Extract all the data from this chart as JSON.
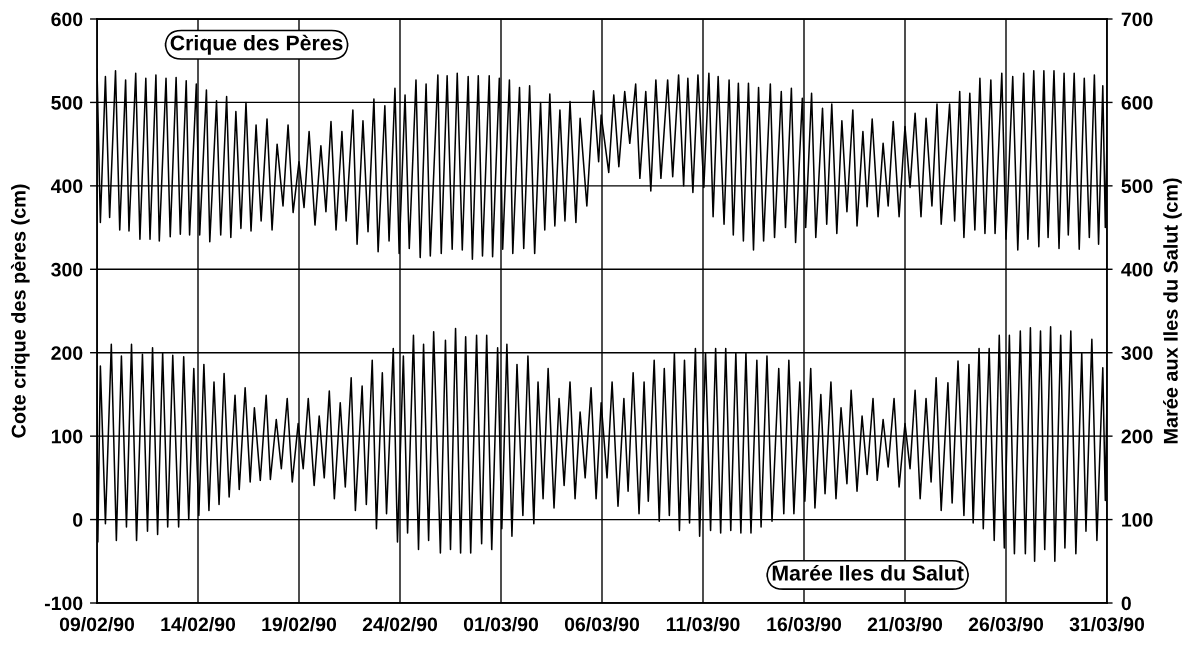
{
  "chart_data": {
    "type": "line",
    "ylabel": "Cote crique des pères (cm)",
    "y2label": "Marée aux Iles du Salut (cm)",
    "xlim": [
      "1990-02-09",
      "1990-03-31"
    ],
    "xticks": [
      {
        "value": "1990-02-09",
        "label": "09/02/90"
      },
      {
        "value": "1990-02-14",
        "label": "14/02/90"
      },
      {
        "value": "1990-02-19",
        "label": "19/02/90"
      },
      {
        "value": "1990-02-24",
        "label": "24/02/90"
      },
      {
        "value": "1990-03-01",
        "label": "01/03/90"
      },
      {
        "value": "1990-03-06",
        "label": "06/03/90"
      },
      {
        "value": "1990-03-11",
        "label": "11/03/90"
      },
      {
        "value": "1990-03-16",
        "label": "16/03/90"
      },
      {
        "value": "1990-03-21",
        "label": "21/03/90"
      },
      {
        "value": "1990-03-26",
        "label": "26/03/90"
      },
      {
        "value": "1990-03-31",
        "label": "31/03/90"
      }
    ],
    "ylim": [
      -100,
      600
    ],
    "yticks": [
      -100,
      0,
      100,
      200,
      300,
      400,
      500,
      600
    ],
    "y2lim": [
      0,
      700
    ],
    "y2ticks": [
      0,
      100,
      200,
      300,
      400,
      500,
      600,
      700
    ],
    "grid": true,
    "marker": "none",
    "line_style": "solid",
    "series": [
      {
        "name": "Crique des Pères",
        "color": "#000000",
        "x": [
          "1990-02-09T00:00",
          "1990-02-09T04:00",
          "1990-02-09T10:00",
          "1990-02-09T15:00",
          "1990-02-09T22:00",
          "1990-02-10T03:00",
          "1990-02-10T10:00",
          "1990-02-10T14:00",
          "1990-02-10T22:00",
          "1990-02-11T03:00",
          "1990-02-11T10:00",
          "1990-02-11T15:00",
          "1990-02-11T22:00",
          "1990-02-12T02:00",
          "1990-02-12T10:00",
          "1990-02-12T15:00",
          "1990-02-12T22:00",
          "1990-02-13T03:00",
          "1990-02-13T10:00",
          "1990-02-13T14:00",
          "1990-02-13T22:00",
          "1990-02-14T02:00",
          "1990-02-14T10:00",
          "1990-02-14T14:00",
          "1990-02-14T22:00",
          "1990-02-15T03:00",
          "1990-02-15T10:00",
          "1990-02-15T15:00",
          "1990-02-15T21:00",
          "1990-02-16T03:00",
          "1990-02-16T09:00",
          "1990-02-16T15:00",
          "1990-02-16T21:00",
          "1990-02-17T03:00",
          "1990-02-17T10:00",
          "1990-02-17T16:00",
          "1990-02-17T22:00",
          "1990-02-18T05:00",
          "1990-02-18T11:00",
          "1990-02-18T17:00",
          "1990-02-19T00:00",
          "1990-02-19T06:00",
          "1990-02-19T12:00",
          "1990-02-19T19:00",
          "1990-02-20T02:00",
          "1990-02-20T08:00",
          "1990-02-20T14:00",
          "1990-02-20T20:00",
          "1990-02-21T03:00",
          "1990-02-21T08:00",
          "1990-02-21T16:00",
          "1990-02-21T21:00",
          "1990-02-22T04:00",
          "1990-02-22T10:00",
          "1990-02-22T17:00",
          "1990-02-22T22:00",
          "1990-02-23T06:00",
          "1990-02-23T11:00",
          "1990-02-23T18:00",
          "1990-02-23T23:00",
          "1990-02-24T06:00",
          "1990-02-24T11:00",
          "1990-02-24T19:00",
          "1990-02-25T00:00",
          "1990-02-25T07:00",
          "1990-02-25T12:00",
          "1990-02-25T21:00",
          "1990-02-26T01:00",
          "1990-02-26T08:00",
          "1990-02-26T14:00",
          "1990-02-26T20:00",
          "1990-02-27T02:00",
          "1990-02-27T09:00",
          "1990-02-27T14:00",
          "1990-02-27T21:00",
          "1990-02-28T02:00",
          "1990-02-28T10:00",
          "1990-02-28T14:00",
          "1990-02-28T22:00",
          "1990-03-01T02:00",
          "1990-03-01T10:00",
          "1990-03-01T14:00",
          "1990-03-01T22:00",
          "1990-03-02T03:00",
          "1990-03-02T10:00",
          "1990-03-02T16:00",
          "1990-03-02T23:00",
          "1990-03-03T04:00",
          "1990-03-03T10:00",
          "1990-03-03T16:00",
          "1990-03-03T22:00",
          "1990-03-04T04:00",
          "1990-03-04T10:00",
          "1990-03-04T17:00",
          "1990-03-04T22:00",
          "1990-03-05T06:00",
          "1990-03-05T14:00",
          "1990-03-05T20:00",
          "1990-03-05T23:00",
          "1990-03-06T08:00",
          "1990-03-06T14:00",
          "1990-03-06T20:00",
          "1990-03-07T03:00",
          "1990-03-07T09:00",
          "1990-03-07T16:00",
          "1990-03-07T21:00",
          "1990-03-08T04:00",
          "1990-03-08T10:00",
          "1990-03-08T16:00",
          "1990-03-08T22:00",
          "1990-03-09T06:00",
          "1990-03-09T12:00",
          "1990-03-09T19:00",
          "1990-03-10T01:00",
          "1990-03-10T06:00",
          "1990-03-10T12:00",
          "1990-03-10T18:00",
          "1990-03-11T01:00",
          "1990-03-11T07:00",
          "1990-03-11T12:00",
          "1990-03-11T18:00",
          "1990-03-12T01:00",
          "1990-03-12T07:00",
          "1990-03-12T12:00",
          "1990-03-12T18:00",
          "1990-03-13T00:00",
          "1990-03-13T06:00",
          "1990-03-13T12:00",
          "1990-03-13T18:00",
          "1990-03-14T00:00",
          "1990-03-14T08:00",
          "1990-03-14T13:00",
          "1990-03-14T21:00",
          "1990-03-15T02:00",
          "1990-03-15T09:00",
          "1990-03-15T14:00",
          "1990-03-15T22:00",
          "1990-03-16T02:00",
          "1990-03-16T09:00",
          "1990-03-16T14:00",
          "1990-03-16T22:00",
          "1990-03-17T03:00",
          "1990-03-17T09:00",
          "1990-03-17T15:00",
          "1990-03-17T21:00",
          "1990-03-18T03:00",
          "1990-03-18T10:00",
          "1990-03-18T15:00",
          "1990-03-18T22:00",
          "1990-03-19T03:00",
          "1990-03-19T09:00",
          "1990-03-19T16:00",
          "1990-03-19T22:00",
          "1990-03-20T04:00",
          "1990-03-20T10:00",
          "1990-03-20T17:00",
          "1990-03-21T00:00",
          "1990-03-21T06:00",
          "1990-03-21T12:00",
          "1990-03-21T19:00",
          "1990-03-22T01:00",
          "1990-03-22T08:00",
          "1990-03-22T14:00",
          "1990-03-22T19:00",
          "1990-03-23T05:00",
          "1990-03-23T11:00",
          "1990-03-23T17:00",
          "1990-03-23T22:00",
          "1990-03-24T05:00",
          "1990-03-24T11:00",
          "1990-03-24T17:00",
          "1990-03-24T23:00",
          "1990-03-25T06:00",
          "1990-03-25T11:00",
          "1990-03-25T19:00",
          "1990-03-26T00:00",
          "1990-03-26T08:00",
          "1990-03-26T14:00",
          "1990-03-26T21:00",
          "1990-03-27T02:00",
          "1990-03-27T09:00",
          "1990-03-27T15:00",
          "1990-03-27T21:00",
          "1990-03-28T02:00",
          "1990-03-28T09:00",
          "1990-03-28T15:00",
          "1990-03-28T21:00",
          "1990-03-29T02:00",
          "1990-03-29T09:00",
          "1990-03-29T15:00",
          "1990-03-29T21:00",
          "1990-03-30T03:00",
          "1990-03-30T09:00",
          "1990-03-30T14:00",
          "1990-03-30T19:00",
          "1990-03-30T22:00",
          "1990-03-31T00:00"
        ],
        "values": [
          540,
          356,
          531,
          362,
          538,
          347,
          527,
          346,
          535,
          336,
          529,
          336,
          533,
          334,
          529,
          339,
          530,
          342,
          526,
          341,
          522,
          341,
          515,
          333,
          502,
          341,
          507,
          338,
          489,
          349,
          500,
          346,
          473,
          358,
          480,
          347,
          450,
          376,
          473,
          368,
          429,
          374,
          465,
          353,
          448,
          369,
          477,
          347,
          465,
          358,
          491,
          330,
          478,
          345,
          504,
          321,
          496,
          334,
          517,
          319,
          509,
          325,
          527,
          314,
          522,
          316,
          533,
          319,
          532,
          324,
          535,
          323,
          531,
          312,
          532,
          316,
          532,
          315,
          529,
          324,
          527,
          319,
          518,
          325,
          520,
          319,
          500,
          347,
          510,
          352,
          491,
          358,
          501,
          356,
          481,
          376,
          514,
          429,
          485,
          416,
          509,
          423,
          513,
          451,
          522,
          409,
          513,
          394,
          527,
          409,
          527,
          411,
          533,
          400,
          529,
          392,
          533,
          398,
          535,
          363,
          531,
          354,
          527,
          341,
          523,
          334,
          523,
          323,
          518,
          334,
          522,
          338,
          513,
          350,
          517,
          332,
          505,
          350,
          511,
          338,
          493,
          354,
          498,
          343,
          478,
          369,
          491,
          352,
          465,
          375,
          480,
          363,
          451,
          376,
          477,
          363,
          471,
          398,
          487,
          363,
          481,
          376,
          498,
          354,
          498,
          358,
          513,
          338,
          511,
          347,
          529,
          343,
          527,
          343,
          535,
          336,
          531,
          323,
          535,
          336,
          538,
          327,
          538,
          338,
          538,
          325,
          535,
          341,
          535,
          324,
          529,
          338,
          533,
          330,
          520,
          350,
          458
        ]
      },
      {
        "name": "Marée Iles du Salut",
        "color": "#000000",
        "axis": "y2",
        "x": [
          "1990-02-09T00:00",
          "1990-02-09T01:00",
          "1990-02-09T04:00",
          "1990-02-09T10:00",
          "1990-02-09T17:00",
          "1990-02-09T23:00",
          "1990-02-10T05:00",
          "1990-02-10T11:00",
          "1990-02-10T17:00",
          "1990-02-10T23:00",
          "1990-02-11T06:00",
          "1990-02-11T12:00",
          "1990-02-11T18:00",
          "1990-02-12T00:00",
          "1990-02-12T06:00",
          "1990-02-12T12:00",
          "1990-02-12T18:00",
          "1990-02-13T01:00",
          "1990-02-13T07:00",
          "1990-02-13T13:00",
          "1990-02-13T19:00",
          "1990-02-14T01:00",
          "1990-02-14T07:00",
          "1990-02-14T13:00",
          "1990-02-14T19:00",
          "1990-02-15T01:00",
          "1990-02-15T07:00",
          "1990-02-15T13:00",
          "1990-02-15T20:00",
          "1990-02-16T01:00",
          "1990-02-16T08:00",
          "1990-02-16T14:00",
          "1990-02-16T19:00",
          "1990-02-17T02:00",
          "1990-02-17T09:00",
          "1990-02-17T14:00",
          "1990-02-17T21:00",
          "1990-02-18T03:00",
          "1990-02-18T10:00",
          "1990-02-18T16:00",
          "1990-02-18T23:00",
          "1990-02-19T05:00",
          "1990-02-19T11:00",
          "1990-02-19T18:00",
          "1990-02-20T00:00",
          "1990-02-20T06:00",
          "1990-02-20T12:00",
          "1990-02-20T18:00",
          "1990-02-21T01:00",
          "1990-02-21T07:00",
          "1990-02-21T14:00",
          "1990-02-21T19:00",
          "1990-02-22T03:00",
          "1990-02-22T08:00",
          "1990-02-22T15:00",
          "1990-02-22T20:00",
          "1990-02-23T03:00",
          "1990-02-23T08:00",
          "1990-02-23T16:00",
          "1990-02-23T21:00",
          "1990-02-24T04:00",
          "1990-02-24T09:00",
          "1990-02-24T16:00",
          "1990-02-24T22:00",
          "1990-02-25T04:00",
          "1990-02-25T10:00",
          "1990-02-25T16:00",
          "1990-02-26T00:00",
          "1990-02-26T06:00",
          "1990-02-26T12:00",
          "1990-02-26T18:00",
          "1990-02-27T00:00",
          "1990-02-27T06:00",
          "1990-02-27T12:00",
          "1990-02-27T19:00",
          "1990-02-28T01:00",
          "1990-02-28T07:00",
          "1990-02-28T13:00",
          "1990-02-28T20:00",
          "1990-03-01T01:00",
          "1990-03-01T07:00",
          "1990-03-01T13:00",
          "1990-03-01T19:00",
          "1990-03-02T02:00",
          "1990-03-02T08:00",
          "1990-03-02T15:00",
          "1990-03-02T20:00",
          "1990-03-03T02:00",
          "1990-03-03T08:00",
          "1990-03-03T15:00",
          "1990-03-03T21:00",
          "1990-03-04T03:00",
          "1990-03-04T10:00",
          "1990-03-04T16:00",
          "1990-03-04T22:00",
          "1990-03-05T04:00",
          "1990-03-05T11:00",
          "1990-03-05T17:00",
          "1990-03-05T23:00",
          "1990-03-06T06:00",
          "1990-03-06T12:00",
          "1990-03-06T19:00",
          "1990-03-07T02:00",
          "1990-03-07T07:00",
          "1990-03-07T13:00",
          "1990-03-07T20:00",
          "1990-03-08T02:00",
          "1990-03-08T07:00",
          "1990-03-08T14:00",
          "1990-03-08T20:00",
          "1990-03-09T02:00",
          "1990-03-09T08:00",
          "1990-03-09T14:00",
          "1990-03-09T20:00",
          "1990-03-10T02:00",
          "1990-03-10T08:00",
          "1990-03-10T15:00",
          "1990-03-10T20:00",
          "1990-03-11T03:00",
          "1990-03-11T09:00",
          "1990-03-11T15:00",
          "1990-03-11T21:00",
          "1990-03-12T03:00",
          "1990-03-12T09:00",
          "1990-03-12T15:00",
          "1990-03-12T21:00",
          "1990-03-13T03:00",
          "1990-03-13T09:00",
          "1990-03-13T16:00",
          "1990-03-13T21:00",
          "1990-03-14T04:00",
          "1990-03-14T10:00",
          "1990-03-14T18:00",
          "1990-03-15T00:00",
          "1990-03-15T06:00",
          "1990-03-15T12:00",
          "1990-03-15T19:00",
          "1990-03-16T01:00",
          "1990-03-16T08:00",
          "1990-03-16T13:00",
          "1990-03-16T20:00",
          "1990-03-17T01:00",
          "1990-03-17T08:00",
          "1990-03-17T14:00",
          "1990-03-17T20:00",
          "1990-03-18T03:00",
          "1990-03-18T08:00",
          "1990-03-18T15:00",
          "1990-03-18T21:00",
          "1990-03-19T03:00",
          "1990-03-19T10:00",
          "1990-03-19T15:00",
          "1990-03-19T22:00",
          "1990-03-20T04:00",
          "1990-03-20T11:00",
          "1990-03-20T17:00",
          "1990-03-21T00:00",
          "1990-03-21T06:00",
          "1990-03-21T12:00",
          "1990-03-21T18:00",
          "1990-03-22T01:00",
          "1990-03-22T07:00",
          "1990-03-22T13:00",
          "1990-03-22T19:00",
          "1990-03-23T03:00",
          "1990-03-23T08:00",
          "1990-03-23T15:00",
          "1990-03-23T22:00",
          "1990-03-24T04:00",
          "1990-03-24T09:00",
          "1990-03-24T16:00",
          "1990-03-24T21:00",
          "1990-03-25T04:00",
          "1990-03-25T10:00",
          "1990-03-25T16:00",
          "1990-03-25T22:00",
          "1990-03-26T04:00",
          "1990-03-26T10:00",
          "1990-03-26T17:00",
          "1990-03-26T23:00",
          "1990-03-27T05:00",
          "1990-03-27T10:00",
          "1990-03-27T17:00",
          "1990-03-27T22:00",
          "1990-03-28T05:00",
          "1990-03-28T10:00",
          "1990-03-28T17:00",
          "1990-03-28T22:00",
          "1990-03-29T05:00",
          "1990-03-29T11:00",
          "1990-03-29T18:00",
          "1990-03-29T23:00",
          "1990-03-30T06:00",
          "1990-03-30T12:00",
          "1990-03-30T19:00",
          "1990-03-30T22:00",
          "1990-03-31T00:00"
        ],
        "values": [
          233,
          73,
          284,
          95,
          310,
          75,
          296,
          91,
          310,
          75,
          298,
          86,
          306,
          82,
          300,
          91,
          297,
          91,
          295,
          100,
          281,
          105,
          286,
          111,
          265,
          118,
          275,
          127,
          249,
          136,
          258,
          145,
          234,
          147,
          249,
          148,
          220,
          161,
          245,
          145,
          215,
          161,
          245,
          141,
          224,
          150,
          254,
          125,
          240,
          139,
          270,
          111,
          260,
          118,
          291,
          89,
          276,
          107,
          305,
          73,
          296,
          84,
          321,
          64,
          310,
          75,
          325,
          60,
          315,
          64,
          329,
          60,
          319,
          60,
          321,
          71,
          321,
          64,
          306,
          89,
          310,
          80,
          286,
          105,
          296,
          95,
          265,
          125,
          281,
          114,
          245,
          141,
          265,
          125,
          229,
          150,
          258,
          125,
          240,
          150,
          265,
          116,
          245,
          134,
          276,
          107,
          265,
          122,
          291,
          98,
          281,
          105,
          299,
          87,
          291,
          96,
          305,
          80,
          300,
          87,
          305,
          84,
          305,
          87,
          300,
          84,
          300,
          84,
          291,
          91,
          296,
          98,
          281,
          107,
          291,
          107,
          265,
          122,
          281,
          114,
          250,
          131,
          265,
          125,
          234,
          143,
          255,
          134,
          224,
          154,
          245,
          147,
          220,
          163,
          245,
          139,
          215,
          161,
          255,
          125,
          245,
          145,
          270,
          111,
          264,
          120,
          290,
          105,
          286,
          96,
          305,
          89,
          305,
          75,
          321,
          66,
          321,
          59,
          326,
          59,
          330,
          50,
          326,
          64,
          331,
          50,
          321,
          66,
          326,
          59,
          300,
          86,
          316,
          75,
          282,
          123,
          245
        ]
      }
    ]
  }
}
